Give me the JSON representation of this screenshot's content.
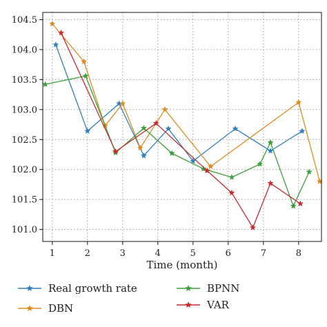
{
  "chart_data": {
    "type": "line",
    "title": "",
    "xlabel": "Time (month)",
    "ylabel": "",
    "xlim": [
      0.73,
      8.65
    ],
    "ylim": [
      100.8,
      104.62
    ],
    "xticks": [
      1,
      2,
      3,
      4,
      5,
      6,
      7,
      8
    ],
    "yticks": [
      101.0,
      101.5,
      102.0,
      102.5,
      103.0,
      103.5,
      104.0,
      104.5
    ],
    "ytick_labels": [
      "101.0",
      "101.5",
      "102.0",
      "102.5",
      "103.0",
      "103.5",
      "104.0",
      "104.5"
    ],
    "grid": true,
    "legend_position": "bottom",
    "series": [
      {
        "name": "Real growth rate",
        "color": "#2e7fc0",
        "marker": "star",
        "x": [
          1.1,
          2.0,
          2.9,
          3.6,
          4.3,
          5.0,
          6.2,
          7.2,
          8.1
        ],
        "y": [
          104.08,
          102.64,
          103.1,
          102.23,
          102.68,
          102.14,
          102.68,
          102.31,
          102.64
        ]
      },
      {
        "name": "DBN",
        "color": "#e08a1e",
        "marker": "star",
        "x": [
          1.0,
          1.9,
          2.5,
          3.0,
          3.5,
          4.2,
          5.5,
          8.0,
          8.6
        ],
        "y": [
          104.43,
          103.8,
          102.73,
          103.1,
          102.36,
          103.0,
          102.05,
          103.12,
          101.8
        ]
      },
      {
        "name": "BPNN",
        "color": "#3a9e3a",
        "marker": "star",
        "x": [
          0.8,
          1.95,
          2.8,
          3.6,
          4.4,
          5.3,
          6.1,
          6.9,
          7.2,
          7.85,
          8.3
        ],
        "y": [
          103.42,
          103.56,
          102.28,
          102.69,
          102.27,
          102.01,
          101.87,
          102.09,
          102.45,
          101.39,
          101.96
        ]
      },
      {
        "name": "VAR",
        "color": "#c62b2b",
        "marker": "star",
        "x": [
          1.25,
          2.8,
          3.95,
          5.4,
          6.1,
          6.7,
          7.2,
          8.05
        ],
        "y": [
          104.28,
          102.3,
          102.77,
          101.98,
          101.61,
          101.03,
          101.77,
          101.43
        ]
      }
    ]
  }
}
